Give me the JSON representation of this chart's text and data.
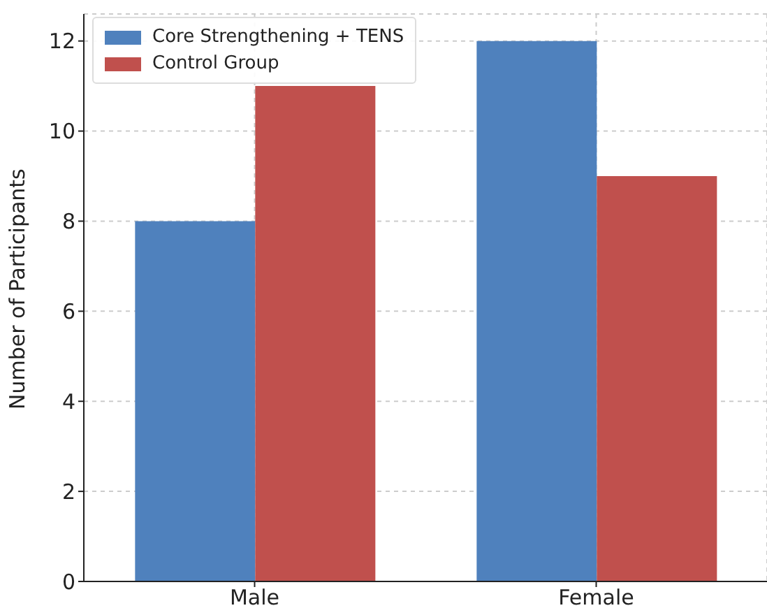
{
  "chart_data": {
    "type": "bar",
    "ylabel": "Number of Participants",
    "categories": [
      "Male",
      "Female"
    ],
    "series": [
      {
        "name": "Core Strengthening + TENS",
        "color": "#4f81bd",
        "values": [
          8,
          12
        ]
      },
      {
        "name": "Control Group",
        "color": "#c0504d",
        "values": [
          11,
          9
        ]
      }
    ],
    "ylim": [
      0,
      12.6
    ],
    "yticks": [
      0,
      2,
      4,
      6,
      8,
      10,
      12
    ],
    "grid": true,
    "legend": "top left"
  }
}
